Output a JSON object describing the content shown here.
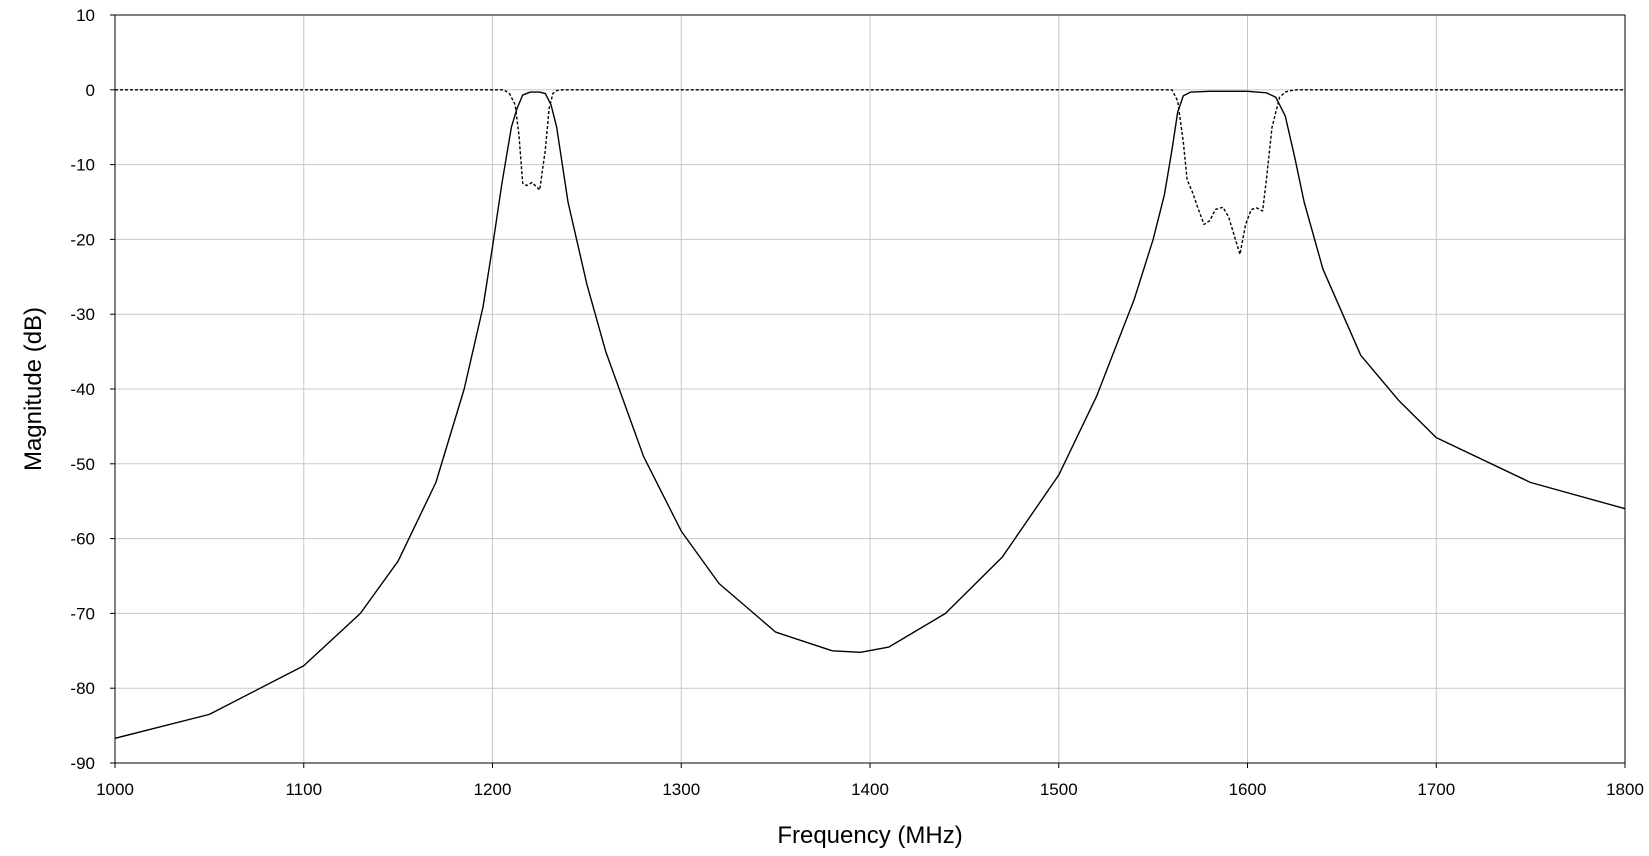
{
  "chart_data": {
    "type": "line",
    "title": "",
    "xlabel": "Frequency (MHz)",
    "ylabel": "Magnitude (dB)",
    "xlim": [
      1000,
      1800
    ],
    "ylim": [
      -90,
      10
    ],
    "x_ticks": [
      "1000",
      "1100",
      "1200",
      "1300",
      "1400",
      "1500",
      "1600",
      "1700",
      "1800"
    ],
    "y_ticks": [
      "10",
      "0",
      "-10",
      "-20",
      "-30",
      "-40",
      "-50",
      "-60",
      "-70",
      "-80",
      "-90"
    ],
    "grid": true,
    "legend": "none",
    "line_color": "#000000",
    "series": [
      {
        "style": "solid",
        "x": [
          1000,
          1050,
          1100,
          1130,
          1150,
          1170,
          1185,
          1195,
          1200,
          1205,
          1210,
          1213,
          1216,
          1220,
          1225,
          1228,
          1231,
          1234,
          1240,
          1250,
          1260,
          1280,
          1300,
          1320,
          1350,
          1380,
          1395,
          1410,
          1440,
          1470,
          1500,
          1520,
          1540,
          1550,
          1556,
          1560,
          1563,
          1566,
          1570,
          1580,
          1600,
          1610,
          1615,
          1620,
          1625,
          1630,
          1640,
          1660,
          1680,
          1700,
          1750,
          1800
        ],
        "y": [
          -86.7,
          -83.5,
          -77,
          -70,
          -63,
          -52.5,
          -40,
          -29,
          -21,
          -12.5,
          -5,
          -2.5,
          -0.7,
          -0.3,
          -0.3,
          -0.5,
          -2,
          -5,
          -15,
          -26,
          -35,
          -49,
          -59,
          -66,
          -72.5,
          -75,
          -75.2,
          -74.5,
          -70,
          -62.5,
          -51.5,
          -41,
          -28,
          -20,
          -14,
          -8,
          -3,
          -0.8,
          -0.3,
          -0.2,
          -0.2,
          -0.4,
          -1,
          -3.5,
          -9,
          -15,
          -24,
          -35.5,
          -41.5,
          -46.5,
          -52.5,
          -56
        ]
      },
      {
        "style": "dashed",
        "x": [
          1000,
          1206,
          1209,
          1212,
          1214,
          1216,
          1218,
          1221,
          1225,
          1228,
          1230,
          1232,
          1234,
          1237,
          1240,
          1560,
          1563,
          1566,
          1568,
          1571,
          1574,
          1577,
          1580,
          1583,
          1587,
          1590,
          1593,
          1596,
          1599,
          1602,
          1605,
          1608,
          1610,
          1613,
          1617,
          1620,
          1623,
          1626,
          1630,
          1800
        ],
        "y": [
          0,
          0,
          -0.5,
          -2,
          -6,
          -12.5,
          -12.8,
          -12.4,
          -13.4,
          -8,
          -2.5,
          -0.5,
          -0.1,
          0,
          0,
          0,
          -1.5,
          -7,
          -12,
          -13.8,
          -16,
          -18,
          -17.5,
          -16,
          -15.7,
          -17,
          -19.5,
          -22,
          -18,
          -16,
          -15.8,
          -16.2,
          -12,
          -5,
          -1,
          -0.3,
          -0.1,
          0,
          0,
          0
        ]
      }
    ]
  }
}
